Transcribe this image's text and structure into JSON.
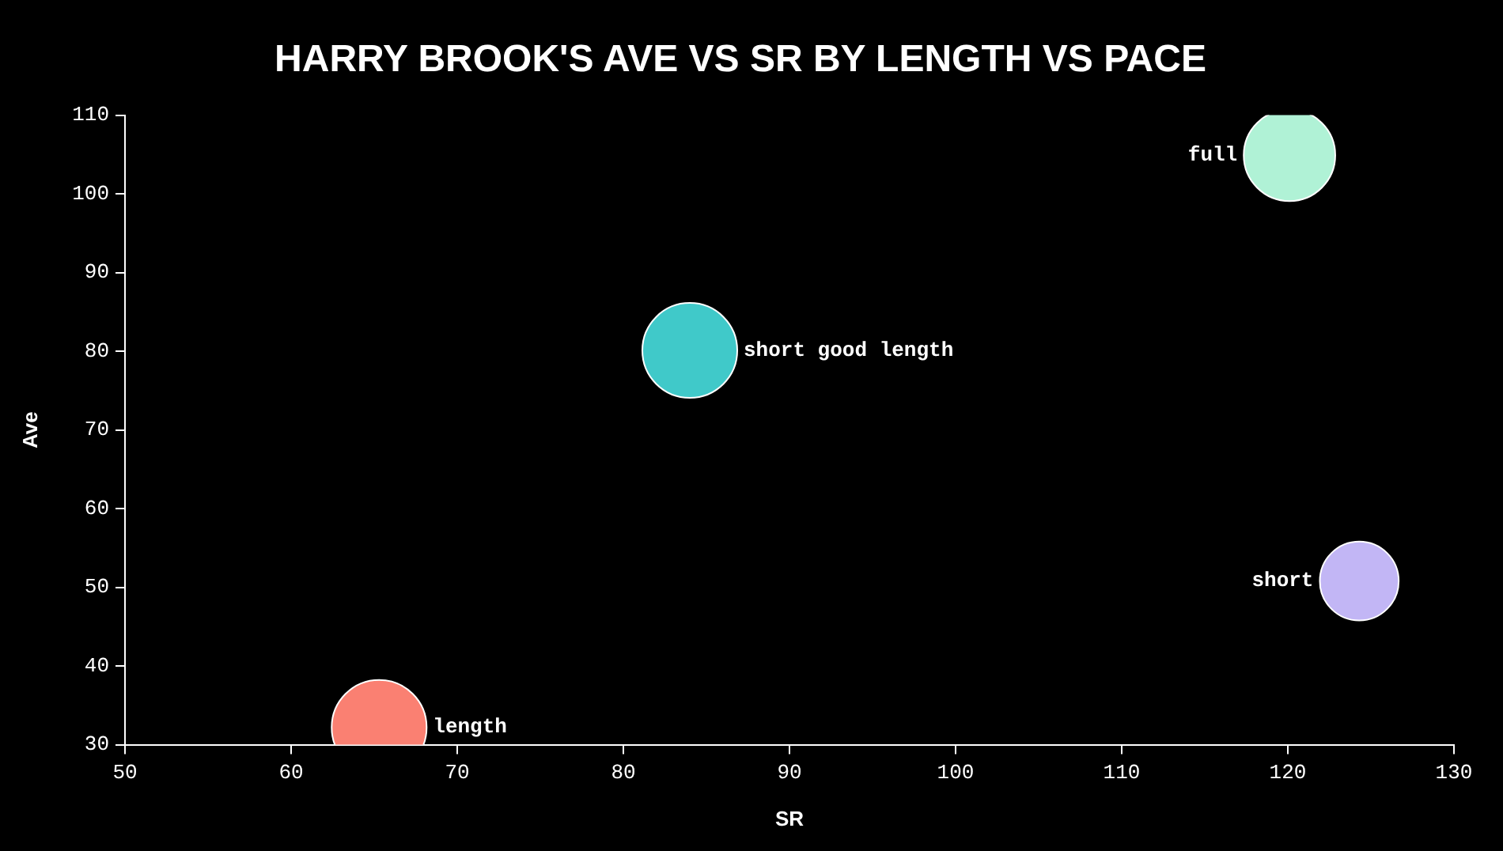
{
  "chart_data": {
    "type": "bubble",
    "title": "HARRY BROOK'S AVE VS SR BY LENGTH VS PACE",
    "xlabel": "SR",
    "ylabel": "Ave",
    "xlim": [
      50,
      130
    ],
    "xticks": [
      50,
      60,
      70,
      80,
      90,
      100,
      110,
      120,
      130
    ],
    "ylim": [
      30,
      110
    ],
    "yticks": [
      30,
      40,
      50,
      60,
      70,
      80,
      90,
      100,
      110
    ],
    "grid": false,
    "legend": false,
    "series": [
      {
        "name": "full",
        "color": "#b0f2d6",
        "x": [
          120.1
        ],
        "values": [
          104.9
        ],
        "sizes": [
          0.93
        ]
      },
      {
        "name": "short good length",
        "color": "#40c9c9",
        "x": [
          84.0
        ],
        "values": [
          80.1
        ],
        "sizes": [
          1
        ]
      },
      {
        "name": "short",
        "color": "#c2b6f5",
        "x": [
          124.3
        ],
        "values": [
          50.8
        ],
        "sizes": [
          0.69
        ]
      },
      {
        "name": "length",
        "color": "#fa8072",
        "x": [
          65.3
        ],
        "values": [
          32.2
        ],
        "sizes": [
          1
        ]
      }
    ]
  }
}
